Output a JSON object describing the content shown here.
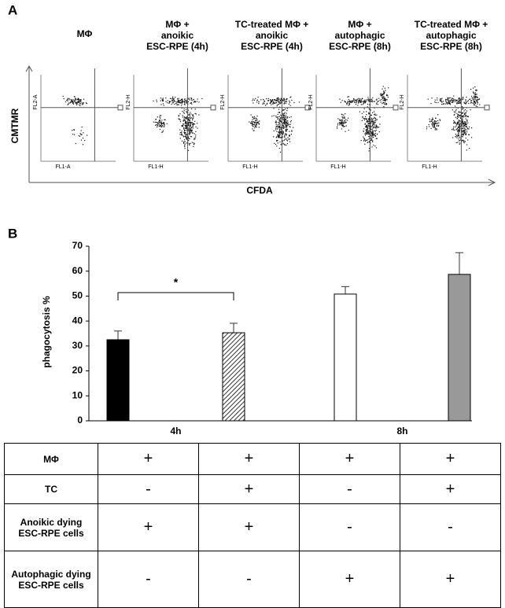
{
  "panel_a": {
    "label": "A",
    "y_axis_label": "CMTMR",
    "x_axis_label": "CFDA",
    "plots": [
      {
        "title": [
          "MΦ"
        ],
        "y_label": "FL2-A",
        "x_label": "FL1-A"
      },
      {
        "title": [
          "MΦ +",
          "anoikic",
          "ESC-RPE (4h)"
        ],
        "y_label": "FL2-H",
        "x_label": "FL1-H"
      },
      {
        "title": [
          "TC-treated MΦ +",
          "anoikic",
          "ESC-RPE (4h)"
        ],
        "y_label": "FL2-H",
        "x_label": "FL1-H"
      },
      {
        "title": [
          "MΦ +",
          "autophagic",
          "ESC-RPE (8h)"
        ],
        "y_label": "FL2-H",
        "x_label": "FL1-H"
      },
      {
        "title": [
          "TC-treated MΦ +",
          "autophagic",
          "ESC-RPE (8h)"
        ],
        "y_label": "FL2-H",
        "x_label": "FL1-H"
      }
    ]
  },
  "chart_data": {
    "type": "bar",
    "panel_label": "B",
    "y_label": "phagocytosis %",
    "categories": [
      null,
      null,
      null,
      null
    ],
    "group_labels": [
      "4h",
      "8h"
    ],
    "values": [
      32.5,
      35.3,
      50.8,
      58.7
    ],
    "errors": [
      3.5,
      3.8,
      3,
      8.7
    ],
    "colors": [
      "#000000",
      "#ffffff",
      "#ffffff",
      "#999999"
    ],
    "hatch": [
      false,
      true,
      false,
      false
    ],
    "annotation": "*",
    "ylim": [
      0,
      70
    ],
    "yticks": [
      0,
      10,
      20,
      30,
      40,
      50,
      60,
      70
    ]
  },
  "table": {
    "rows": [
      [
        "MΦ",
        "+",
        "+",
        "+",
        "+"
      ],
      [
        "TC",
        "-",
        "+",
        "-",
        "+"
      ],
      [
        "Anoikic dying ESC-RPE cells",
        "+",
        "+",
        "-",
        "-"
      ],
      [
        "Autophagic dying ESC-RPE cells",
        "-",
        "-",
        "+",
        "+"
      ]
    ]
  }
}
